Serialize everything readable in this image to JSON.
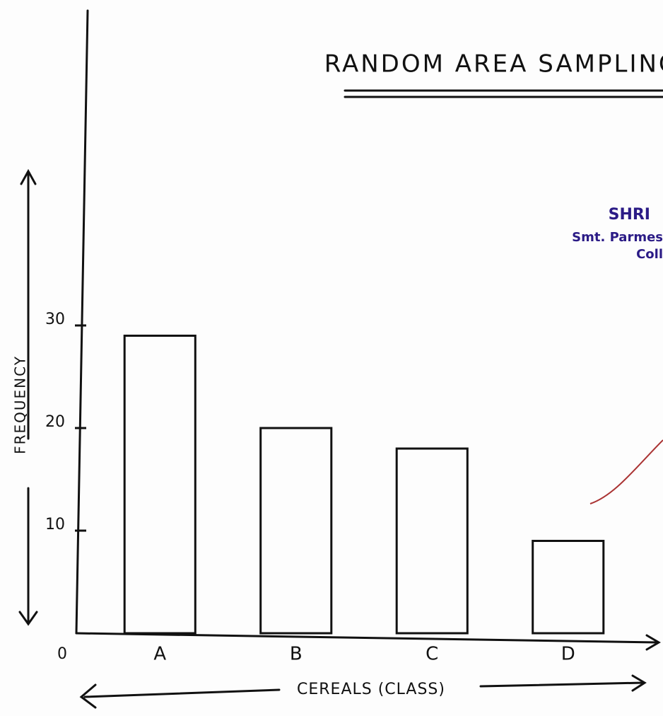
{
  "chart_data": {
    "type": "bar",
    "title": "RANDOM AREA SAMPLING",
    "x_label": "CEREALS (CLASS)",
    "y_label": "FREQUENCY",
    "categories": [
      "A",
      "B",
      "C",
      "D"
    ],
    "values": [
      29,
      20,
      18,
      9
    ],
    "color": "#111111",
    "ylim": [
      0,
      60
    ],
    "yticks": [
      0,
      10,
      20,
      30
    ],
    "grid": false,
    "stamp": [
      "SHRI",
      "Smt. Parmes",
      "Coll"
    ]
  }
}
